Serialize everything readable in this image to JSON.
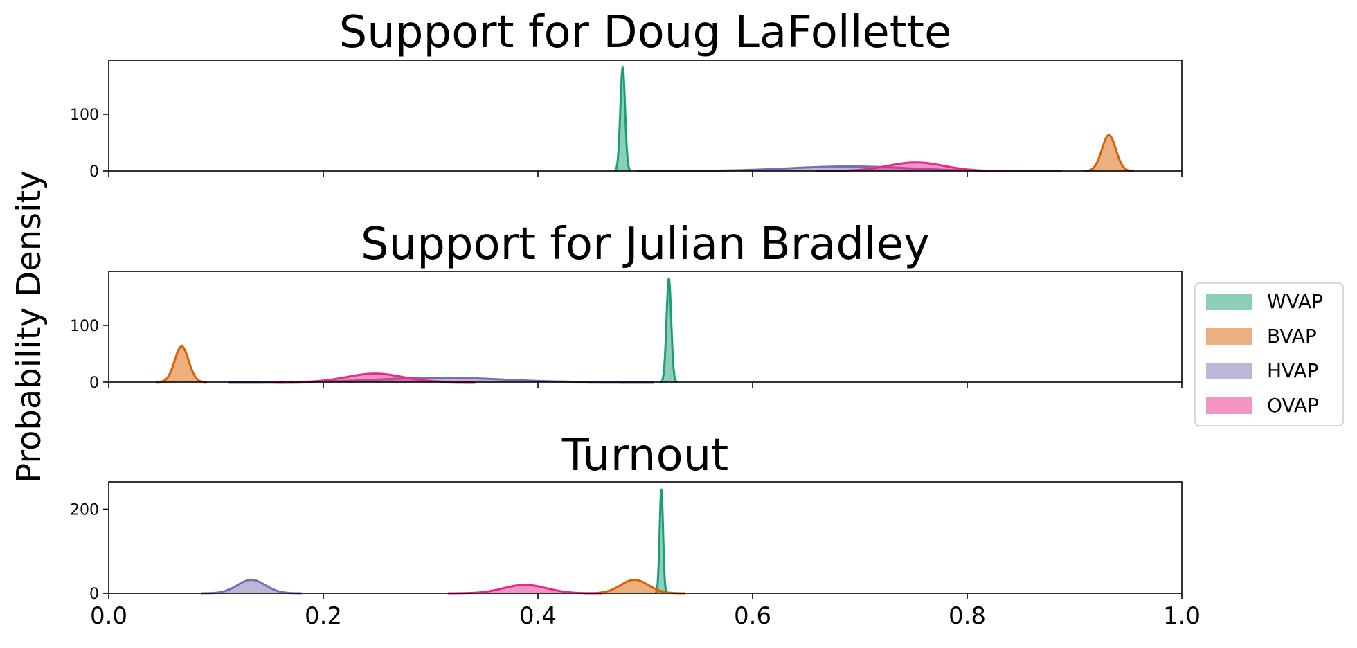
{
  "figure": {
    "ylabel": "Probability Density",
    "x_ticks": [
      "0.0",
      "0.2",
      "0.4",
      "0.6",
      "0.8",
      "1.0"
    ],
    "legend": [
      {
        "label": "WVAP",
        "color": "#1b9e77"
      },
      {
        "label": "BVAP",
        "color": "#d95f02"
      },
      {
        "label": "HVAP",
        "color": "#7570b3"
      },
      {
        "label": "OVAP",
        "color": "#e7298a"
      }
    ]
  },
  "chart_data": [
    {
      "type": "area",
      "title": "Support for Doug LaFollette",
      "xlim": [
        0,
        1
      ],
      "ylim": [
        0,
        195
      ],
      "y_ticks": [
        0,
        100
      ],
      "series": [
        {
          "name": "WVAP",
          "color": "#1b9e77",
          "mean": 0.479,
          "sd": 0.0022,
          "peak": 182
        },
        {
          "name": "BVAP",
          "color": "#d95f02",
          "mean": 0.932,
          "sd": 0.0065,
          "peak": 63
        },
        {
          "name": "HVAP",
          "color": "#7570b3",
          "mean": 0.69,
          "sd": 0.055,
          "peak": 8
        },
        {
          "name": "OVAP",
          "color": "#e7298a",
          "mean": 0.752,
          "sd": 0.026,
          "peak": 15
        }
      ]
    },
    {
      "type": "area",
      "title": "Support for Julian Bradley",
      "xlim": [
        0,
        1
      ],
      "ylim": [
        0,
        195
      ],
      "y_ticks": [
        0,
        100
      ],
      "series": [
        {
          "name": "WVAP",
          "color": "#1b9e77",
          "mean": 0.522,
          "sd": 0.0022,
          "peak": 182
        },
        {
          "name": "BVAP",
          "color": "#d95f02",
          "mean": 0.068,
          "sd": 0.0065,
          "peak": 63
        },
        {
          "name": "HVAP",
          "color": "#7570b3",
          "mean": 0.31,
          "sd": 0.055,
          "peak": 8
        },
        {
          "name": "OVAP",
          "color": "#e7298a",
          "mean": 0.248,
          "sd": 0.026,
          "peak": 15
        }
      ]
    },
    {
      "type": "area",
      "title": "Turnout",
      "xlim": [
        0,
        1
      ],
      "ylim": [
        0,
        265
      ],
      "y_ticks": [
        0,
        200
      ],
      "series": [
        {
          "name": "WVAP",
          "color": "#1b9e77",
          "mean": 0.515,
          "sd": 0.0016,
          "peak": 245
        },
        {
          "name": "BVAP",
          "color": "#d95f02",
          "mean": 0.49,
          "sd": 0.013,
          "peak": 32
        },
        {
          "name": "HVAP",
          "color": "#7570b3",
          "mean": 0.133,
          "sd": 0.013,
          "peak": 32
        },
        {
          "name": "OVAP",
          "color": "#e7298a",
          "mean": 0.388,
          "sd": 0.02,
          "peak": 20
        }
      ]
    }
  ]
}
